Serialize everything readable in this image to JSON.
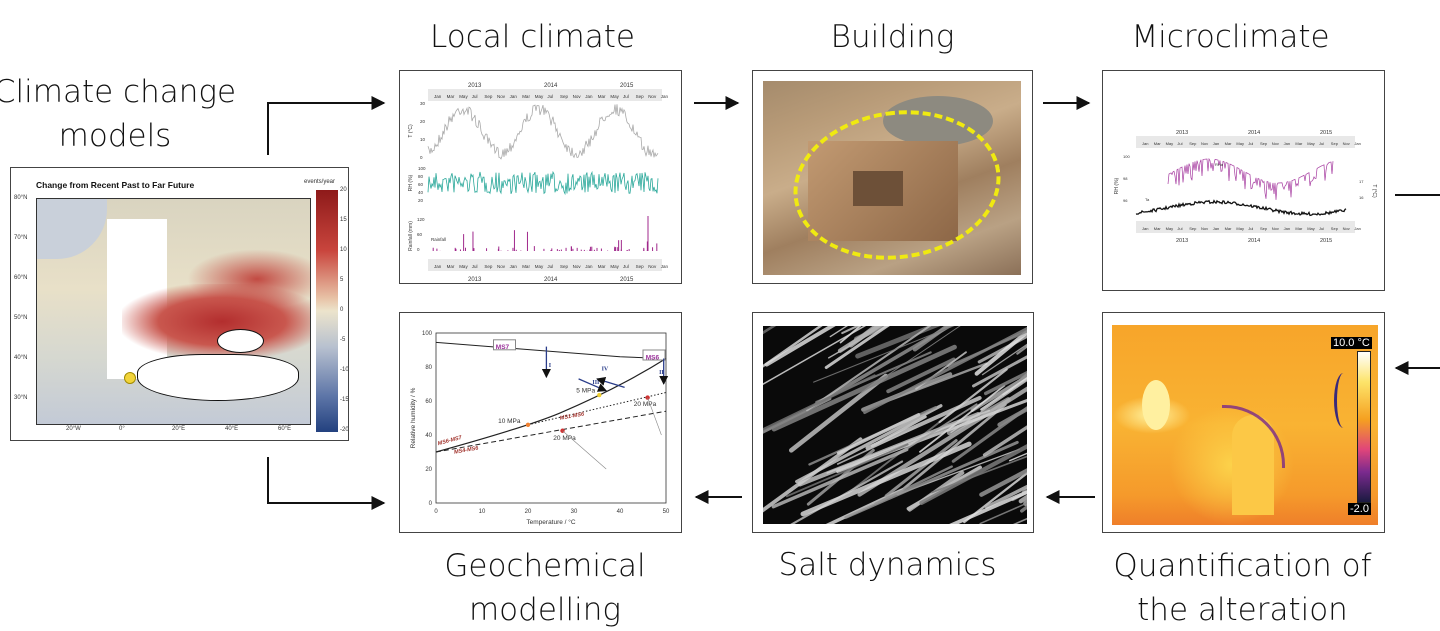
{
  "labels": {
    "climate_models": [
      "Climate change",
      "models"
    ],
    "local_climate": "Local climate",
    "building": "Building",
    "microclimate": "Microclimate",
    "geochemical": [
      "Geochemical",
      "modelling"
    ],
    "salt": "Salt dynamics",
    "quantification": [
      "Quantification of",
      "the alteration"
    ]
  },
  "map": {
    "title": "Change from Recent Past to Far Future",
    "unit": "events/year",
    "lat_labels": [
      "80°N",
      "70°N",
      "60°N",
      "50°N",
      "40°N",
      "30°N"
    ],
    "lon_labels": [
      "20°W",
      "0°",
      "20°E",
      "40°E",
      "60°E"
    ],
    "colorbar_ticks": [
      "20",
      "15",
      "10",
      "5",
      "0",
      "-5",
      "-10",
      "-15",
      "-20"
    ]
  },
  "local_chart": {
    "years": [
      "2013",
      "2014",
      "2015"
    ],
    "months": [
      "Jan",
      "Mar",
      "May",
      "Jul",
      "Sep",
      "Nov",
      "Jan",
      "Mar",
      "May",
      "Jul",
      "Sep",
      "Nov",
      "Jan",
      "Mar",
      "May",
      "Jul",
      "Sep",
      "Nov",
      "Jan"
    ],
    "t_label": "T (°C)",
    "t_ticks": [
      "30",
      "20",
      "10",
      "0"
    ],
    "rh_label": "RH (%)",
    "rh_ticks": [
      "100",
      "80",
      "60",
      "40",
      "20"
    ],
    "rain_label": "Rainfall (mm)",
    "rain_ticks": [
      "120",
      "60",
      "0"
    ],
    "rain_legend": "Rainfall",
    "colors": {
      "t": "#a9a9a9",
      "rh": "#2aa89a",
      "rain": "#a0288c"
    }
  },
  "micro_chart": {
    "years": [
      "2013",
      "2014",
      "2015"
    ],
    "months": [
      "Jan",
      "Mar",
      "May",
      "Jul",
      "Sep",
      "Nov",
      "Jan",
      "Mar",
      "May",
      "Jul",
      "Sep",
      "Nov",
      "Jan",
      "Mar",
      "May",
      "Jul",
      "Sep",
      "Nov",
      "Jan"
    ],
    "rh_label": "RH (%)",
    "rh_ticks": [
      "100",
      "98",
      "96"
    ],
    "t_label": "T (°C)",
    "t_ticks": [
      "17",
      "16"
    ],
    "rh_series": "RHa",
    "t_series": "Ta",
    "colors": {
      "rh": "#a63ca0",
      "t": "#111111"
    }
  },
  "geochem": {
    "xlabel": "Temperature / °C",
    "ylabel": "Relative humidity / %",
    "x_ticks": [
      "0",
      "10",
      "20",
      "30",
      "40",
      "50"
    ],
    "y_ticks": [
      "0",
      "20",
      "40",
      "60",
      "80",
      "100"
    ],
    "phases": [
      "MS7",
      "MS6"
    ],
    "lines": [
      "MS6-MS7",
      "MS4-MS6",
      "MS1-MS6"
    ],
    "roman": [
      "I",
      "II",
      "III",
      "IV"
    ],
    "pressures": [
      "5 MPa",
      "10 MPa",
      "20 MPa",
      "20 MPa"
    ]
  },
  "thermal": {
    "max": "10.0 °C",
    "min": "-2.0"
  }
}
